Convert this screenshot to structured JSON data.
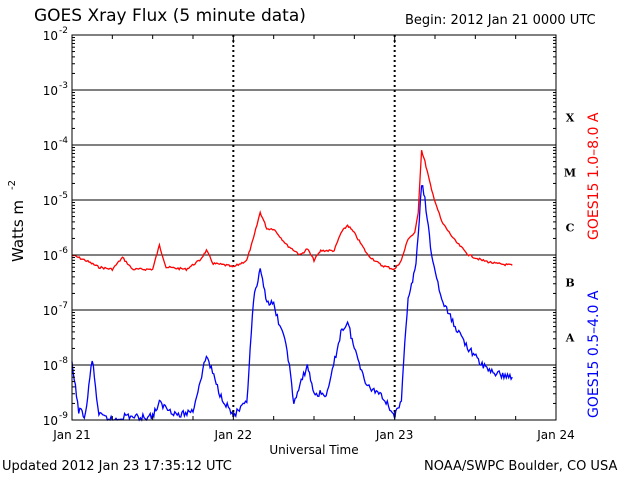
{
  "header": {
    "title": "GOES Xray Flux (5 minute data)",
    "begin": "Begin:  2012 Jan 21 0000 UTC"
  },
  "footer": {
    "updated": "Updated 2012 Jan 23 17:35:12 UTC",
    "credit": "NOAA/SWPC Boulder, CO USA"
  },
  "chart_data": {
    "type": "line",
    "title": "GOES Xray Flux (5 minute data)",
    "xlabel": "Universal Time",
    "ylabel": "Watts m",
    "ylabel_exponent": "-2",
    "yscale": "log",
    "ylim": [
      1e-09,
      0.01
    ],
    "xlim": [
      "2012-01-21",
      "2012-01-24"
    ],
    "x_ticks": [
      "Jan 21",
      "Jan 22",
      "Jan 23",
      "Jan 24"
    ],
    "y_ticks": [
      {
        "base": "10",
        "exp": "-9"
      },
      {
        "base": "10",
        "exp": "-8"
      },
      {
        "base": "10",
        "exp": "-7"
      },
      {
        "base": "10",
        "exp": "-6"
      },
      {
        "base": "10",
        "exp": "-5"
      },
      {
        "base": "10",
        "exp": "-4"
      },
      {
        "base": "10",
        "exp": "-3"
      },
      {
        "base": "10",
        "exp": "-2"
      }
    ],
    "flare_classes": [
      {
        "label": "A",
        "level": 1e-08
      },
      {
        "label": "B",
        "level": 1e-07
      },
      {
        "label": "C",
        "level": 1e-06
      },
      {
        "label": "M",
        "level": 1e-05
      },
      {
        "label": "X",
        "level": 0.0001
      }
    ],
    "grid": "horizontal lines at each decade",
    "series": [
      {
        "name": "GOES15 1.0–8.0 A",
        "color": "#ff0000",
        "points": [
          [
            "2012-01-21 00:00",
            1e-06
          ],
          [
            "2012-01-21 02:00",
            8e-07
          ],
          [
            "2012-01-21 04:00",
            6e-07
          ],
          [
            "2012-01-21 06:00",
            5.5e-07
          ],
          [
            "2012-01-21 07:30",
            9e-07
          ],
          [
            "2012-01-21 09:00",
            5.5e-07
          ],
          [
            "2012-01-21 12:00",
            5.5e-07
          ],
          [
            "2012-01-21 13:00",
            1.5e-06
          ],
          [
            "2012-01-21 14:00",
            6e-07
          ],
          [
            "2012-01-21 17:00",
            5.5e-07
          ],
          [
            "2012-01-21 19:00",
            8e-07
          ],
          [
            "2012-01-21 20:00",
            1.2e-06
          ],
          [
            "2012-01-21 21:00",
            7e-07
          ],
          [
            "2012-01-21 23:00",
            6.5e-07
          ],
          [
            "2012-01-22 00:00",
            6e-07
          ],
          [
            "2012-01-22 02:00",
            8e-07
          ],
          [
            "2012-01-22 03:00",
            2e-06
          ],
          [
            "2012-01-22 04:00",
            6e-06
          ],
          [
            "2012-01-22 05:00",
            3e-06
          ],
          [
            "2012-01-22 06:00",
            3e-06
          ],
          [
            "2012-01-22 08:00",
            1.5e-06
          ],
          [
            "2012-01-22 10:00",
            1e-06
          ],
          [
            "2012-01-22 11:00",
            1.3e-06
          ],
          [
            "2012-01-22 12:00",
            8e-07
          ],
          [
            "2012-01-22 13:00",
            1.2e-06
          ],
          [
            "2012-01-22 15:00",
            1.2e-06
          ],
          [
            "2012-01-22 16:00",
            2.5e-06
          ],
          [
            "2012-01-22 17:00",
            3.5e-06
          ],
          [
            "2012-01-22 18:00",
            2.5e-06
          ],
          [
            "2012-01-22 20:00",
            1e-06
          ],
          [
            "2012-01-22 22:00",
            6.5e-07
          ],
          [
            "2012-01-23 00:00",
            5.5e-07
          ],
          [
            "2012-01-23 01:00",
            8e-07
          ],
          [
            "2012-01-23 02:00",
            2e-06
          ],
          [
            "2012-01-23 03:00",
            2.5e-06
          ],
          [
            "2012-01-23 03:30",
            6e-06
          ],
          [
            "2012-01-23 04:00",
            8e-05
          ],
          [
            "2012-01-23 04:30",
            5e-05
          ],
          [
            "2012-01-23 05:30",
            1.5e-05
          ],
          [
            "2012-01-23 07:00",
            4e-06
          ],
          [
            "2012-01-23 09:00",
            1.8e-06
          ],
          [
            "2012-01-23 11:00",
            1e-06
          ],
          [
            "2012-01-23 13:00",
            8e-07
          ],
          [
            "2012-01-23 15:00",
            7e-07
          ],
          [
            "2012-01-23 17:30",
            6.5e-07
          ]
        ]
      },
      {
        "name": "GOES15 0.5–4.0 A",
        "color": "#0000ff",
        "points": [
          [
            "2012-01-21 00:00",
            1e-08
          ],
          [
            "2012-01-21 01:00",
            1.5e-09
          ],
          [
            "2012-01-21 02:00",
            1.2e-09
          ],
          [
            "2012-01-21 03:00",
            1.3e-08
          ],
          [
            "2012-01-21 04:00",
            1.2e-09
          ],
          [
            "2012-01-21 06:00",
            1e-09
          ],
          [
            "2012-01-21 08:00",
            1.2e-09
          ],
          [
            "2012-01-21 10:00",
            1.1e-09
          ],
          [
            "2012-01-21 12:00",
            1.2e-09
          ],
          [
            "2012-01-21 13:00",
            2e-09
          ],
          [
            "2012-01-21 16:00",
            1.2e-09
          ],
          [
            "2012-01-21 18:00",
            1.5e-09
          ],
          [
            "2012-01-21 20:00",
            1.5e-08
          ],
          [
            "2012-01-21 22:00",
            3e-09
          ],
          [
            "2012-01-22 00:00",
            1.2e-09
          ],
          [
            "2012-01-22 02:00",
            2e-09
          ],
          [
            "2012-01-22 03:00",
            1.5e-07
          ],
          [
            "2012-01-22 04:00",
            5e-07
          ],
          [
            "2012-01-22 05:00",
            1.5e-07
          ],
          [
            "2012-01-22 06:00",
            1.2e-07
          ],
          [
            "2012-01-22 08:00",
            2e-08
          ],
          [
            "2012-01-22 09:00",
            2e-09
          ],
          [
            "2012-01-22 11:00",
            1e-08
          ],
          [
            "2012-01-22 12:00",
            3e-09
          ],
          [
            "2012-01-22 14:00",
            3e-09
          ],
          [
            "2012-01-22 16:00",
            4e-08
          ],
          [
            "2012-01-22 17:00",
            6e-08
          ],
          [
            "2012-01-22 18:00",
            2e-08
          ],
          [
            "2012-01-22 20:00",
            4e-09
          ],
          [
            "2012-01-22 22:00",
            3e-09
          ],
          [
            "2012-01-23 00:00",
            1.2e-09
          ],
          [
            "2012-01-23 01:00",
            2e-09
          ],
          [
            "2012-01-23 01:30",
            3e-08
          ],
          [
            "2012-01-23 02:00",
            1.5e-07
          ],
          [
            "2012-01-23 03:00",
            5e-07
          ],
          [
            "2012-01-23 03:30",
            2e-06
          ],
          [
            "2012-01-23 04:00",
            2e-05
          ],
          [
            "2012-01-23 04:30",
            1e-05
          ],
          [
            "2012-01-23 05:30",
            1e-06
          ],
          [
            "2012-01-23 07:00",
            1.5e-07
          ],
          [
            "2012-01-23 09:00",
            5e-08
          ],
          [
            "2012-01-23 11:00",
            2e-08
          ],
          [
            "2012-01-23 13:00",
            1e-08
          ],
          [
            "2012-01-23 15:00",
            7e-09
          ],
          [
            "2012-01-23 17:30",
            6e-09
          ]
        ]
      }
    ]
  }
}
